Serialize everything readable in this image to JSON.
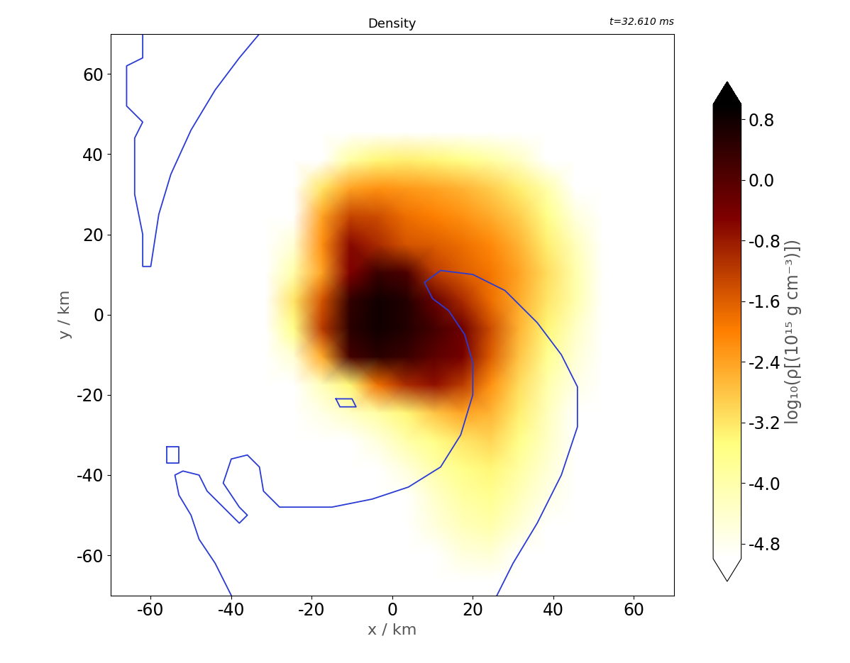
{
  "chart_data": {
    "type": "heatmap",
    "title": "Density",
    "annotation": "t=32.610 ms",
    "x_label": "x / km",
    "y_label": "y / km",
    "xlim": [
      -70,
      70
    ],
    "ylim": [
      -70,
      70
    ],
    "xticks": [
      -60,
      -40,
      -20,
      0,
      20,
      40,
      60
    ],
    "yticks": [
      -60,
      -40,
      -20,
      0,
      20,
      40,
      60
    ],
    "x": [
      -66.5,
      -59.5,
      -52.5,
      -45.5,
      -38.5,
      -31.5,
      -24.5,
      -17.5,
      -10.5,
      -3.5,
      3.5,
      10.5,
      17.5,
      24.5,
      31.5,
      38.5,
      45.5,
      52.5,
      59.5,
      66.5
    ],
    "y": [
      -66.5,
      -59.5,
      -52.5,
      -45.5,
      -38.5,
      -31.5,
      -24.5,
      -17.5,
      -10.5,
      -3.5,
      3.5,
      10.5,
      17.5,
      24.5,
      31.5,
      38.5,
      45.5,
      52.5,
      59.5,
      66.5
    ],
    "cells": [
      [
        -6,
        -6,
        -6,
        -6,
        -6,
        -6,
        -6,
        -6,
        -6,
        -6,
        -6,
        -6,
        -6,
        -6,
        -6,
        -6,
        -6,
        -6,
        -6,
        -6
      ],
      [
        -6,
        -6,
        -6,
        -6,
        -6,
        -6,
        -6,
        -6,
        -6,
        -6,
        -6,
        -6,
        -4.6,
        -4.5,
        -6,
        -6,
        -6,
        -6,
        -6,
        -6
      ],
      [
        -6,
        -6,
        -6,
        -6,
        -6,
        -6,
        -6,
        -6,
        -6,
        -6,
        -6,
        -4.6,
        -4.2,
        -4.0,
        -4.5,
        -6,
        -6,
        -6,
        -6,
        -6
      ],
      [
        -6,
        -6,
        -6,
        -6,
        -6,
        -6,
        -6,
        -6,
        -6,
        -6,
        -6,
        -4.4,
        -3.9,
        -3.7,
        -4.2,
        -4.7,
        -6,
        -6,
        -6,
        -6
      ],
      [
        -6,
        -6,
        -6,
        -6,
        -6,
        -6,
        -6,
        -6,
        -6,
        -6,
        -4.6,
        -4.0,
        -3.6,
        -3.4,
        -3.9,
        -4.5,
        -6,
        -6,
        -6,
        -6
      ],
      [
        -6,
        -6,
        -6,
        -6,
        -6,
        -6,
        -6,
        -6,
        -6,
        -4.6,
        -4.0,
        -3.6,
        -3.2,
        -3.0,
        -3.6,
        -4.3,
        -6,
        -6,
        -6,
        -6
      ],
      [
        -6,
        -6,
        -6,
        -6,
        -6,
        -6,
        -6,
        -4.7,
        -4.3,
        -3.9,
        -3.4,
        -2.8,
        -2.4,
        -2.6,
        -3.3,
        -4.2,
        -6,
        -6,
        -6,
        -6
      ],
      [
        -6,
        -6,
        -6,
        -6,
        -6,
        -6,
        -6,
        -4.2,
        -3.4,
        -1.8,
        -1.0,
        -0.7,
        -1.2,
        -2.2,
        -3.1,
        -4.0,
        -4.7,
        -6,
        -6,
        -6
      ],
      [
        -6,
        -6,
        -6,
        -6,
        -6,
        -6,
        -4.5,
        -2.5,
        0.2,
        0.5,
        0.3,
        -0.1,
        -0.4,
        -1.6,
        -2.8,
        -3.7,
        -4.5,
        -6,
        -6,
        -6
      ],
      [
        -6,
        -6,
        -6,
        -6,
        -6,
        -6,
        -3.6,
        -1.2,
        0.5,
        0.8,
        0.6,
        0.2,
        -0.3,
        -1.4,
        -2.6,
        -3.4,
        -4.3,
        -6,
        -6,
        -6
      ],
      [
        -6,
        -6,
        -6,
        -6,
        -6,
        -6,
        -3.2,
        -1.5,
        0.4,
        0.8,
        0.6,
        -0.2,
        -1.0,
        -1.8,
        -2.5,
        -3.2,
        -4.0,
        -6,
        -6,
        -6
      ],
      [
        -6,
        -6,
        -6,
        -6,
        -6,
        -6,
        -4.0,
        -2.4,
        -0.5,
        0.3,
        0.1,
        -1.2,
        -1.6,
        -1.9,
        -2.4,
        -3.1,
        -4.0,
        -6,
        -6,
        -6
      ],
      [
        -6,
        -6,
        -6,
        -6,
        -6,
        -6,
        -4.5,
        -2.2,
        -0.6,
        -1.0,
        -1.5,
        -1.6,
        -1.8,
        -2.1,
        -2.6,
        -3.3,
        -4.2,
        -6,
        -6,
        -6
      ],
      [
        -6,
        -6,
        -6,
        -6,
        -6,
        -6,
        -6,
        -2.4,
        -1.3,
        -1.4,
        -1.8,
        -2.0,
        -2.2,
        -2.5,
        -2.9,
        -3.6,
        -4.6,
        -6,
        -6,
        -6
      ],
      [
        -6,
        -6,
        -6,
        -6,
        -6,
        -6,
        -6,
        -3.2,
        -2.4,
        -2.2,
        -2.3,
        -2.4,
        -2.6,
        -2.9,
        -3.3,
        -4.0,
        -6,
        -6,
        -6,
        -6
      ],
      [
        -6,
        -6,
        -6,
        -6,
        -6,
        -6,
        -6,
        -6,
        -3.9,
        -3.4,
        -3.3,
        -3.4,
        -3.6,
        -3.9,
        -4.3,
        -6,
        -6,
        -6,
        -6,
        -6
      ],
      [
        -6,
        -6,
        -6,
        -6,
        -6,
        -6,
        -6,
        -6,
        -6,
        -6,
        -6,
        -6,
        -6,
        -6,
        -6,
        -6,
        -6,
        -6,
        -6,
        -6
      ],
      [
        -6,
        -6,
        -6,
        -6,
        -6,
        -6,
        -6,
        -6,
        -6,
        -6,
        -6,
        -6,
        -6,
        -6,
        -6,
        -6,
        -6,
        -6,
        -6,
        -6
      ],
      [
        -6,
        -6,
        -6,
        -6,
        -6,
        -6,
        -6,
        -6,
        -6,
        -6,
        -6,
        -6,
        -6,
        -6,
        -6,
        -6,
        -6,
        -6,
        -6,
        -6
      ],
      [
        -6,
        -6,
        -6,
        -6,
        -6,
        -6,
        -6,
        -6,
        -6,
        -6,
        -6,
        -6,
        -6,
        -6,
        -6,
        -6,
        -6,
        -6,
        -6,
        -6
      ]
    ],
    "colorbar": {
      "label": "log₁₀(ρ[(10¹⁵ g cm⁻³)])",
      "range": [
        -5.0,
        1.0
      ],
      "ticks": [
        0.8,
        0.0,
        -0.8,
        -1.6,
        -2.4,
        -3.2,
        -4.0,
        -4.8
      ]
    },
    "contours": [
      {
        "color": "#2a3bd4",
        "x": [
          -33,
          -38,
          -44,
          -50,
          -55,
          -58,
          -60,
          -62,
          -62,
          -64,
          -64,
          -62,
          -66,
          -66,
          -62,
          -62
        ],
        "y": [
          70,
          64,
          56,
          46,
          35,
          25,
          12,
          12,
          20,
          30,
          44,
          48,
          52,
          62,
          64,
          70
        ]
      },
      {
        "color": "#2a3bd4",
        "x": [
          26,
          30,
          36,
          42,
          46,
          46,
          42,
          36,
          28,
          20,
          12,
          8,
          10,
          14,
          18,
          20,
          20,
          17,
          12,
          4,
          -5,
          -15,
          -28,
          -32,
          -33,
          -36,
          -40,
          -42,
          -38,
          -36,
          -38,
          -42,
          -46,
          -48,
          -52,
          -54,
          -53,
          -50,
          -48,
          -44,
          -40
        ],
        "y": [
          -70,
          -62,
          -52,
          -40,
          -28,
          -18,
          -10,
          -2,
          6,
          10,
          11,
          8,
          4,
          1,
          -5,
          -12,
          -20,
          -30,
          -38,
          -43,
          -46,
          -48,
          -48,
          -44,
          -38,
          -35,
          -36,
          -42,
          -48,
          -50,
          -52,
          -48,
          -44,
          -40,
          -39,
          -40,
          -45,
          -50,
          -56,
          -62,
          -70
        ]
      },
      {
        "color": "#2a3bd4",
        "x": [
          -56,
          -53,
          -53,
          -56,
          -56
        ],
        "y": [
          -33,
          -33,
          -37,
          -37,
          -33
        ]
      },
      {
        "color": "#2a3bd4",
        "x": [
          -14,
          -10,
          -9,
          -13,
          -14
        ],
        "y": [
          -21,
          -21,
          -23,
          -23,
          -21
        ]
      }
    ]
  }
}
